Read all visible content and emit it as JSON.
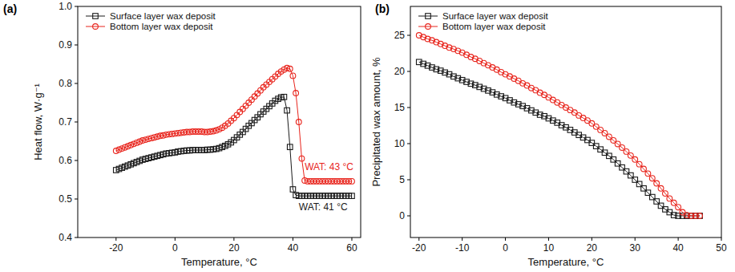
{
  "chart_data": [
    {
      "type": "line",
      "panel": "(a)",
      "x_label": "Temperature, °C",
      "y_label": "Heat flow, W·g⁻¹",
      "xlim": [
        -33,
        63
      ],
      "ylim": [
        0.4,
        1.0
      ],
      "xticks": [
        -20,
        0,
        20,
        40,
        60
      ],
      "yticks": [
        0.4,
        0.5,
        0.6,
        0.7,
        0.8,
        0.9,
        {
          "value": 1.0,
          "label": "1.0"
        }
      ],
      "grid": false,
      "legend": "top-left",
      "x": [
        -20,
        -19,
        -18,
        -17,
        -16,
        -15,
        -14,
        -13,
        -12,
        -11,
        -10,
        -9,
        -8,
        -7,
        -6,
        -5,
        -4,
        -3,
        -2,
        -1,
        0,
        1,
        2,
        3,
        4,
        5,
        6,
        7,
        8,
        9,
        10,
        11,
        12,
        13,
        14,
        15,
        16,
        17,
        18,
        19,
        20,
        21,
        22,
        23,
        24,
        25,
        26,
        27,
        28,
        29,
        30,
        31,
        32,
        33,
        34,
        35,
        36,
        37,
        38,
        39,
        40,
        41,
        42,
        43,
        44,
        45,
        46,
        47,
        48,
        49,
        50,
        51,
        52,
        53,
        54,
        55,
        56,
        57,
        58,
        59,
        60
      ],
      "series": [
        {
          "name": "Surface layer wax deposit",
          "color": "#1a1a1a",
          "marker": "square",
          "line_style": "solid",
          "values": [
            0.575,
            0.578,
            0.581,
            0.584,
            0.587,
            0.59,
            0.593,
            0.596,
            0.599,
            0.602,
            0.604,
            0.606,
            0.608,
            0.61,
            0.612,
            0.614,
            0.616,
            0.618,
            0.619,
            0.62,
            0.621,
            0.623,
            0.624,
            0.625,
            0.626,
            0.626,
            0.627,
            0.627,
            0.627,
            0.627,
            0.627,
            0.628,
            0.628,
            0.629,
            0.63,
            0.632,
            0.635,
            0.638,
            0.642,
            0.647,
            0.653,
            0.66,
            0.667,
            0.674,
            0.682,
            0.69,
            0.697,
            0.705,
            0.712,
            0.72,
            0.727,
            0.734,
            0.741,
            0.748,
            0.755,
            0.76,
            0.764,
            0.765,
            0.73,
            0.635,
            0.525,
            0.51,
            0.508,
            0.508,
            0.508,
            0.508,
            0.508,
            0.508,
            0.508,
            0.508,
            0.508,
            0.508,
            0.508,
            0.508,
            0.508,
            0.508,
            0.508,
            0.508,
            0.508,
            0.508,
            0.508
          ]
        },
        {
          "name": "Bottom layer wax deposit",
          "color": "#e8241c",
          "marker": "circle",
          "line_style": "solid",
          "values": [
            0.625,
            0.628,
            0.631,
            0.634,
            0.637,
            0.64,
            0.643,
            0.646,
            0.649,
            0.652,
            0.654,
            0.656,
            0.658,
            0.66,
            0.662,
            0.664,
            0.665,
            0.667,
            0.668,
            0.669,
            0.67,
            0.671,
            0.672,
            0.673,
            0.674,
            0.674,
            0.675,
            0.675,
            0.675,
            0.675,
            0.674,
            0.674,
            0.675,
            0.676,
            0.678,
            0.681,
            0.685,
            0.69,
            0.696,
            0.703,
            0.71,
            0.718,
            0.726,
            0.734,
            0.742,
            0.75,
            0.758,
            0.766,
            0.774,
            0.782,
            0.79,
            0.797,
            0.804,
            0.811,
            0.818,
            0.825,
            0.831,
            0.836,
            0.84,
            0.838,
            0.82,
            0.775,
            0.7,
            0.605,
            0.548,
            0.546,
            0.546,
            0.546,
            0.546,
            0.546,
            0.546,
            0.546,
            0.546,
            0.546,
            0.546,
            0.546,
            0.546,
            0.546,
            0.546,
            0.546,
            0.546
          ]
        }
      ],
      "annotations": [
        {
          "text": "WAT: 43 °C",
          "x": 44,
          "y": 0.575,
          "color": "#e8241c"
        },
        {
          "text": "WAT: 41 °C",
          "x": 42,
          "y": 0.47,
          "color": "#1a1a1a"
        }
      ]
    },
    {
      "type": "line",
      "panel": "(b)",
      "x_label": "Temperature, °C",
      "y_label": "Precipitated wax amount, %",
      "xlim": [
        -22,
        50
      ],
      "ylim": [
        -3,
        29
      ],
      "xticks": [
        -20,
        -10,
        0,
        10,
        20,
        30,
        40,
        50
      ],
      "yticks": [
        0,
        5,
        10,
        15,
        20,
        25
      ],
      "grid": false,
      "legend": "top-left",
      "x": [
        -20,
        -19,
        -18,
        -17,
        -16,
        -15,
        -14,
        -13,
        -12,
        -11,
        -10,
        -9,
        -8,
        -7,
        -6,
        -5,
        -4,
        -3,
        -2,
        -1,
        0,
        1,
        2,
        3,
        4,
        5,
        6,
        7,
        8,
        9,
        10,
        11,
        12,
        13,
        14,
        15,
        16,
        17,
        18,
        19,
        20,
        21,
        22,
        23,
        24,
        25,
        26,
        27,
        28,
        29,
        30,
        31,
        32,
        33,
        34,
        35,
        36,
        37,
        38,
        39,
        40,
        41,
        42,
        43,
        44,
        45
      ],
      "series": [
        {
          "name": "Surface layer wax deposit",
          "color": "#1a1a1a",
          "marker": "square",
          "line_style": "solid",
          "values": [
            21.3,
            21.05,
            20.8,
            20.55,
            20.3,
            20.1,
            19.85,
            19.6,
            19.3,
            19.05,
            18.8,
            18.55,
            18.3,
            18.1,
            17.85,
            17.6,
            17.35,
            17.1,
            16.8,
            16.55,
            16.3,
            16.0,
            15.7,
            15.45,
            15.2,
            14.9,
            14.6,
            14.3,
            14.0,
            13.8,
            13.5,
            13.2,
            12.9,
            12.55,
            12.25,
            11.9,
            11.55,
            11.2,
            10.85,
            10.5,
            10.1,
            9.65,
            9.2,
            8.75,
            8.3,
            7.8,
            7.25,
            6.7,
            6.15,
            5.6,
            5.0,
            4.4,
            3.8,
            3.2,
            2.6,
            2.0,
            1.4,
            0.9,
            0.5,
            0.1,
            0,
            0,
            0,
            0,
            0,
            0
          ]
        },
        {
          "name": "Bottom layer wax deposit",
          "color": "#e8241c",
          "marker": "circle",
          "line_style": "solid",
          "values": [
            25.0,
            24.75,
            24.5,
            24.3,
            24.05,
            23.8,
            23.55,
            23.3,
            23.1,
            22.85,
            22.6,
            22.3,
            22.0,
            21.75,
            21.45,
            21.15,
            20.85,
            20.55,
            20.25,
            19.9,
            19.6,
            19.3,
            19.0,
            18.7,
            18.35,
            18.05,
            17.7,
            17.4,
            17.05,
            16.75,
            16.4,
            16.05,
            15.7,
            15.35,
            15.0,
            14.65,
            14.3,
            13.9,
            13.55,
            13.2,
            12.8,
            12.35,
            11.9,
            11.45,
            10.95,
            10.45,
            9.95,
            9.45,
            8.9,
            8.35,
            7.8,
            7.15,
            6.5,
            5.85,
            5.2,
            4.5,
            3.8,
            3.1,
            2.4,
            1.8,
            1.2,
            0.5,
            0.1,
            0,
            0,
            0
          ]
        }
      ]
    }
  ]
}
